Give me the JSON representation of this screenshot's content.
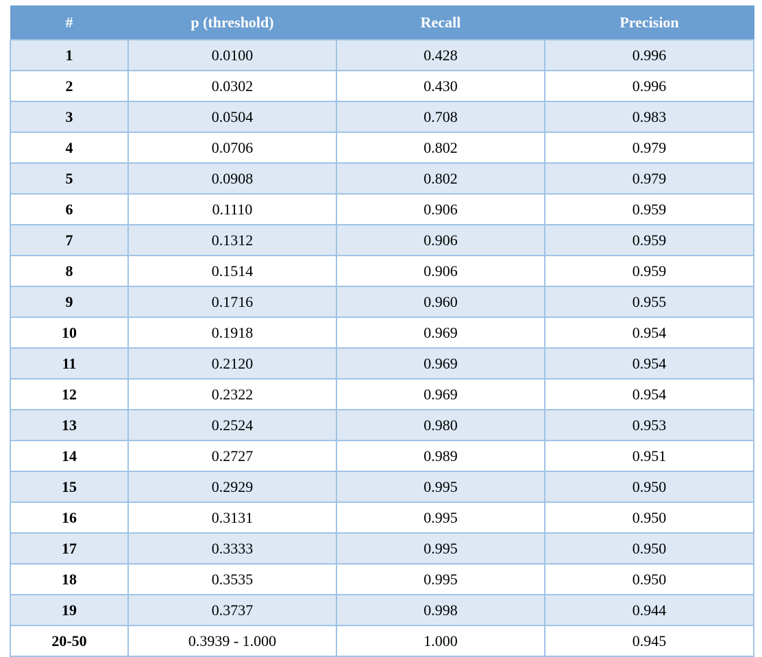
{
  "table": {
    "headers": [
      "#",
      "p (threshold)",
      "Recall",
      "Precision"
    ],
    "rows": [
      [
        "1",
        "0.0100",
        "0.428",
        "0.996"
      ],
      [
        "2",
        "0.0302",
        "0.430",
        "0.996"
      ],
      [
        "3",
        "0.0504",
        "0.708",
        "0.983"
      ],
      [
        "4",
        "0.0706",
        "0.802",
        "0.979"
      ],
      [
        "5",
        "0.0908",
        "0.802",
        "0.979"
      ],
      [
        "6",
        "0.1110",
        "0.906",
        "0.959"
      ],
      [
        "7",
        "0.1312",
        "0.906",
        "0.959"
      ],
      [
        "8",
        "0.1514",
        "0.906",
        "0.959"
      ],
      [
        "9",
        "0.1716",
        "0.960",
        "0.955"
      ],
      [
        "10",
        "0.1918",
        "0.969",
        "0.954"
      ],
      [
        "11",
        "0.2120",
        "0.969",
        "0.954"
      ],
      [
        "12",
        "0.2322",
        "0.969",
        "0.954"
      ],
      [
        "13",
        "0.2524",
        "0.980",
        "0.953"
      ],
      [
        "14",
        "0.2727",
        "0.989",
        "0.951"
      ],
      [
        "15",
        "0.2929",
        "0.995",
        "0.950"
      ],
      [
        "16",
        "0.3131",
        "0.995",
        "0.950"
      ],
      [
        "17",
        "0.3333",
        "0.995",
        "0.950"
      ],
      [
        "18",
        "0.3535",
        "0.995",
        "0.950"
      ],
      [
        "19",
        "0.3737",
        "0.998",
        "0.944"
      ],
      [
        "20-50",
        "0.3939 - 1.000",
        "1.000",
        "0.945"
      ]
    ]
  },
  "colors": {
    "header_bg": "#6b9ed1",
    "header_text": "#ffffff",
    "row_band": "#dde8f4",
    "row_plain": "#ffffff",
    "border": "#9fc3e6"
  }
}
